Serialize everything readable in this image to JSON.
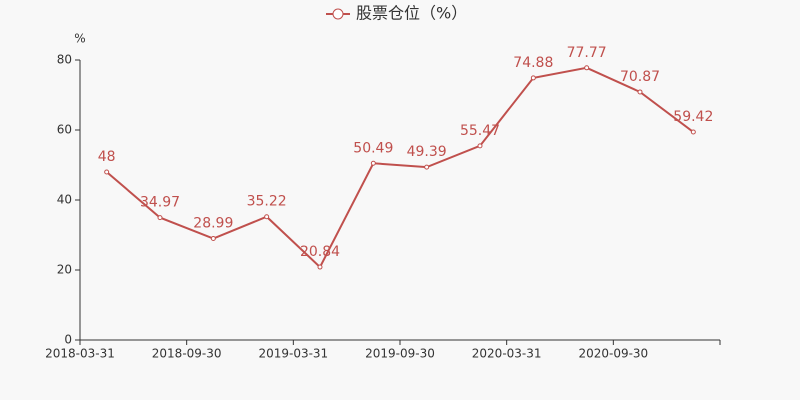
{
  "chart_data": {
    "type": "line",
    "y_unit": "%",
    "categories": [
      "2018-03-31",
      null,
      "2018-09-30",
      null,
      "2019-03-31",
      null,
      "2019-09-30",
      null,
      "2020-03-31",
      null,
      "2020-09-30",
      null
    ],
    "series": [
      {
        "name": "股票仓位（%）",
        "color": "#c0504d",
        "values": [
          48,
          34.97,
          28.99,
          35.22,
          20.84,
          50.49,
          49.39,
          55.47,
          74.88,
          77.77,
          70.87,
          59.42
        ]
      }
    ],
    "ylim": [
      0,
      80
    ],
    "yticks": [
      0,
      20,
      40,
      60,
      80
    ],
    "grid": false
  }
}
